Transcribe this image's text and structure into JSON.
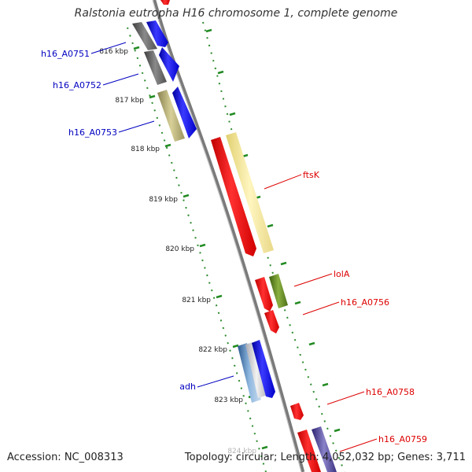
{
  "title": "Ralstonia eutropha H16 chromosome 1, complete genome",
  "accession": "Accession: NC_008313",
  "topology": "Topology: circular; Length: 4,052,032 bp; Genes: 3,711",
  "colors": {
    "backbone": "#7a7a7a",
    "tick_green": "#228b22",
    "label_blue": "#0000c0",
    "label_red": "#dd0000"
  },
  "ticks": [
    {
      "label": "816 kbp"
    },
    {
      "label": "817 kbp"
    },
    {
      "label": "818 kbp"
    },
    {
      "label": "819 kbp"
    },
    {
      "label": "820 kbp"
    },
    {
      "label": "821 kbp"
    },
    {
      "label": "822 kbp"
    },
    {
      "label": "823 kbp"
    },
    {
      "label": "824 kbp"
    }
  ],
  "features": [
    {
      "name": "h16_A0751",
      "color": "#0000c0"
    },
    {
      "name": "h16_A0752",
      "color": "#0000c0"
    },
    {
      "name": "h16_A0753",
      "color": "#0000c0"
    },
    {
      "name": "ftsK",
      "color": "#dd0000"
    },
    {
      "name": "lolA",
      "color": "#dd0000"
    },
    {
      "name": "h16_A0756",
      "color": "#dd0000"
    },
    {
      "name": "adh",
      "color": "#0000c0"
    },
    {
      "name": "h16_A0758",
      "color": "#dd0000"
    },
    {
      "name": "h16_A0759",
      "color": "#dd0000"
    }
  ]
}
